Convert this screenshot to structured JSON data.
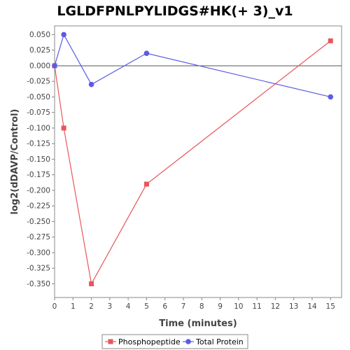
{
  "chart_data": {
    "type": "line",
    "title": "LGLDFPNLPYLIDGS#HK(+ 3)_v1",
    "xlabel": "Time (minutes)",
    "ylabel": "log2(dDAVP/Control)",
    "xlim": [
      0,
      15.6
    ],
    "ylim": [
      -0.372,
      0.064
    ],
    "x_ticks": [
      0,
      1,
      2,
      3,
      4,
      5,
      6,
      7,
      8,
      9,
      10,
      11,
      12,
      13,
      14,
      15
    ],
    "y_ticks": [
      0.05,
      0.025,
      0.0,
      -0.025,
      -0.05,
      -0.075,
      -0.1,
      -0.125,
      -0.15,
      -0.175,
      -0.2,
      -0.225,
      -0.25,
      -0.275,
      -0.3,
      -0.325,
      -0.35
    ],
    "y_tick_labels": [
      "0.050",
      "0.025",
      "0.000",
      "-0.025",
      "-0.050",
      "-0.075",
      "-0.100",
      "-0.125",
      "-0.150",
      "-0.175",
      "-0.200",
      "-0.225",
      "-0.250",
      "-0.275",
      "-0.300",
      "-0.325",
      "-0.350"
    ],
    "zero_line": true,
    "grid": false,
    "legend_position": "bottom",
    "series": [
      {
        "name": "Phosphopeptide",
        "color": "#e8565a",
        "marker": "square",
        "x": [
          0,
          0.5,
          2,
          5,
          15
        ],
        "y": [
          0.0,
          -0.1,
          -0.35,
          -0.19,
          0.04
        ]
      },
      {
        "name": "Total Protein",
        "color": "#5b5be6",
        "marker": "circle",
        "x": [
          0,
          0.5,
          2,
          5,
          15
        ],
        "y": [
          0.0,
          0.05,
          -0.03,
          0.02,
          -0.05
        ]
      }
    ]
  }
}
